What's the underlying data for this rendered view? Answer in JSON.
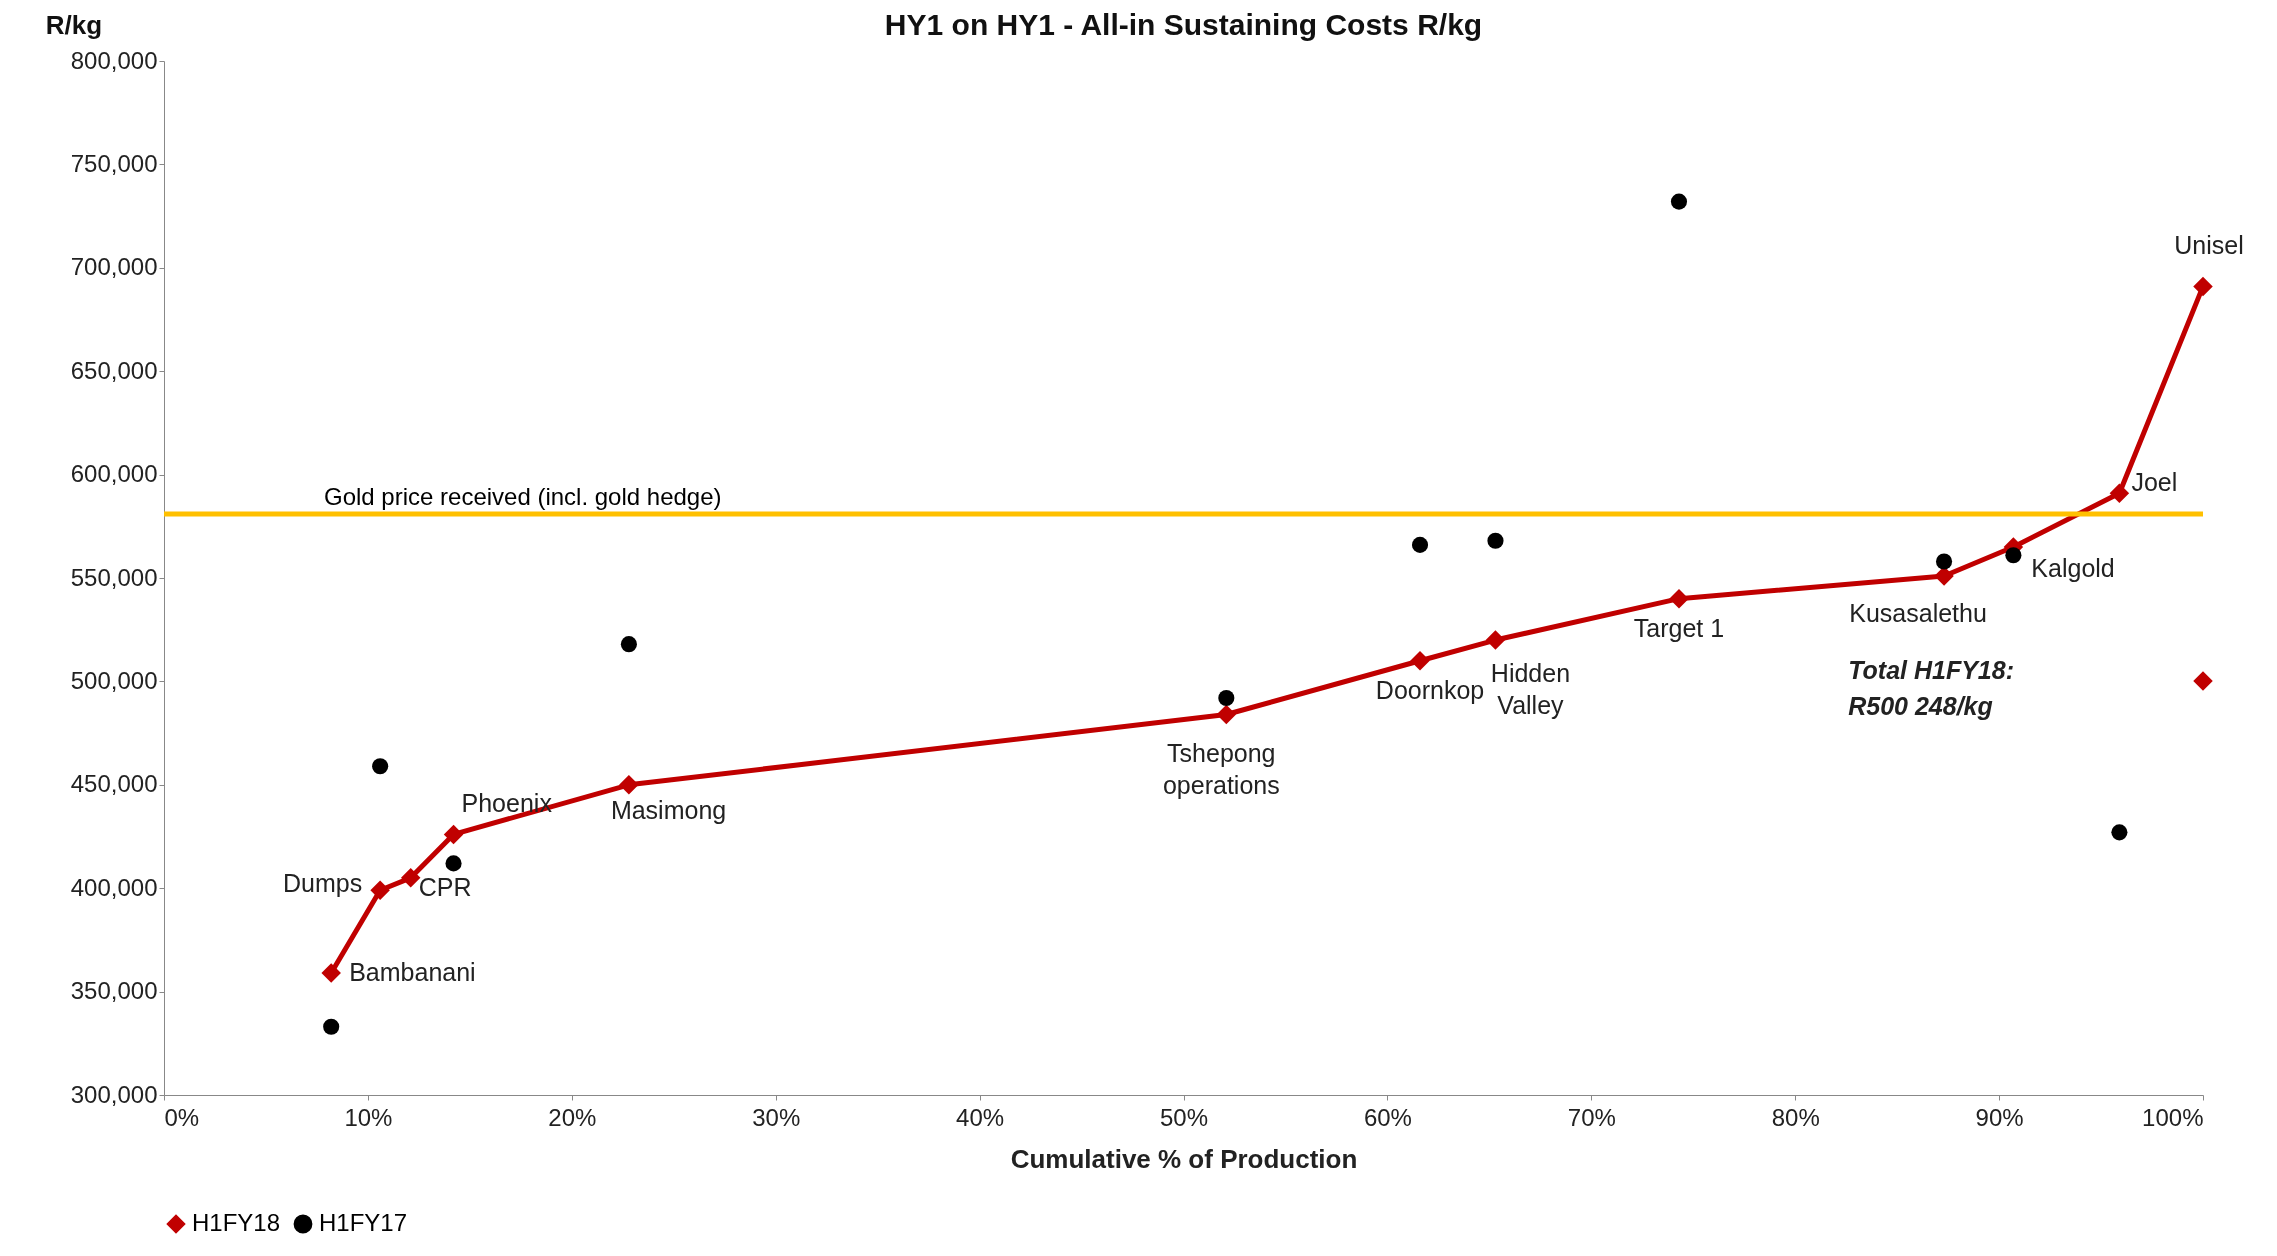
{
  "chart_data": {
    "type": "line",
    "title": "HY1 on HY1 - All-in Sustaining Costs R/kg",
    "xlabel": "Cumulative % of Production",
    "ylabel": "R/kg",
    "xlim": [
      0,
      100
    ],
    "xticks": [
      {
        "value": 0,
        "label": "0%"
      },
      {
        "value": 10,
        "label": "10%"
      },
      {
        "value": 20,
        "label": "20%"
      },
      {
        "value": 30,
        "label": "30%"
      },
      {
        "value": 40,
        "label": "40%"
      },
      {
        "value": 50,
        "label": "50%"
      },
      {
        "value": 60,
        "label": "60%"
      },
      {
        "value": 70,
        "label": "70%"
      },
      {
        "value": 80,
        "label": "80%"
      },
      {
        "value": 90,
        "label": "90%"
      },
      {
        "value": 100,
        "label": "100%"
      }
    ],
    "ylim": [
      300000,
      800000
    ],
    "yticks": [
      {
        "value": 300000,
        "label": "300,000"
      },
      {
        "value": 350000,
        "label": "350,000"
      },
      {
        "value": 400000,
        "label": "400,000"
      },
      {
        "value": 450000,
        "label": "450,000"
      },
      {
        "value": 500000,
        "label": "500,000"
      },
      {
        "value": 550000,
        "label": "550,000"
      },
      {
        "value": 600000,
        "label": "600,000"
      },
      {
        "value": 650000,
        "label": "650,000"
      },
      {
        "value": 700000,
        "label": "700,000"
      },
      {
        "value": 750000,
        "label": "750,000"
      },
      {
        "value": 800000,
        "label": "800,000"
      }
    ],
    "grid": false,
    "legend": "bottom",
    "series": [
      {
        "name": "H1FY18",
        "type": "line",
        "marker": "diamond",
        "color": "#c00000",
        "x": [
          8.2,
          10.6,
          12.1,
          14.2,
          22.8,
          52.1,
          61.6,
          65.3,
          74.3,
          87.3,
          90.7,
          95.9,
          100
        ],
        "values": [
          359000,
          399000,
          405000,
          426000,
          450000,
          484000,
          510000,
          520000,
          540000,
          551000,
          565000,
          591000,
          691000
        ]
      },
      {
        "name": "H1FY17",
        "type": "scatter",
        "marker": "circle",
        "color": "#000000",
        "x": [
          8.2,
          10.6,
          14.2,
          22.8,
          52.1,
          61.6,
          65.3,
          74.3,
          87.3,
          90.7,
          95.9
        ],
        "values": [
          333000,
          459000,
          412000,
          518000,
          492000,
          566000,
          568000,
          732000,
          558000,
          561000,
          427000
        ]
      },
      {
        "type": "scatter",
        "marker": "diamond",
        "color": "#c00000",
        "x": [
          100
        ],
        "values": [
          500248
        ]
      }
    ],
    "ref_lines": [
      {
        "axis": "y",
        "value": 581000,
        "label": "Gold price received (incl. gold hedge)",
        "color": "#ffc000"
      }
    ],
    "annotations": [
      {
        "text": "Bambanani",
        "x": 8.2,
        "y": 359000
      },
      {
        "text": "Dumps",
        "x": 10.6,
        "y": 399000
      },
      {
        "text": "CPR",
        "x": 12.1,
        "y": 405000
      },
      {
        "text": "Phoenix",
        "x": 14.2,
        "y": 426000
      },
      {
        "text": "Masimong",
        "x": 22.8,
        "y": 450000
      },
      {
        "text": "Tshepong\noperations",
        "x": 52.1,
        "y": 484000
      },
      {
        "text": "Doornkop",
        "x": 61.6,
        "y": 510000
      },
      {
        "text": "Hidden\nValley",
        "x": 65.3,
        "y": 520000
      },
      {
        "text": "Target 1",
        "x": 74.3,
        "y": 540000
      },
      {
        "text": "Kusasalethu",
        "x": 87.3,
        "y": 551000
      },
      {
        "text": "Kalgold",
        "x": 90.7,
        "y": 565000
      },
      {
        "text": "Joel",
        "x": 95.9,
        "y": 591000
      },
      {
        "text": "Unisel",
        "x": 100,
        "y": 691000
      },
      "Total H1FY18:\nR500 248/kg"
    ]
  }
}
